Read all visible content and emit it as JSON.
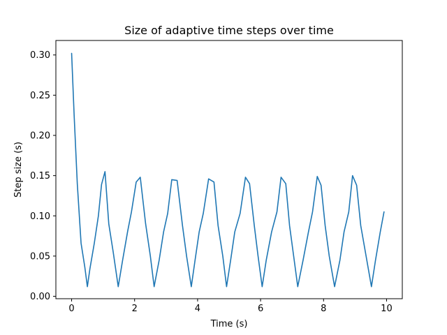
{
  "chart_data": {
    "type": "line",
    "title": "Size of adaptive time steps over time",
    "xlabel": "Time (s)",
    "ylabel": "Step size (s)",
    "xlim": [
      -0.5,
      10.5
    ],
    "ylim": [
      -0.003,
      0.318
    ],
    "x_ticks": [
      0,
      2,
      4,
      6,
      8,
      10
    ],
    "x_tick_labels": [
      "0",
      "2",
      "4",
      "6",
      "8",
      "10"
    ],
    "y_ticks": [
      0.0,
      0.05,
      0.1,
      0.15,
      0.2,
      0.25,
      0.3
    ],
    "y_tick_labels": [
      "0.00",
      "0.05",
      "0.10",
      "0.15",
      "0.20",
      "0.25",
      "0.30"
    ],
    "grid": false,
    "legend": "none",
    "line_color": "#1f77b4",
    "series": [
      {
        "x": [
          0.0,
          0.08,
          0.18,
          0.3,
          0.42,
          0.5,
          0.58,
          0.72,
          0.85,
          0.95,
          1.06,
          1.18,
          1.32,
          1.48,
          1.62,
          1.78,
          1.9,
          2.05,
          2.18,
          2.35,
          2.5,
          2.62,
          2.78,
          2.92,
          3.05,
          3.18,
          3.35,
          3.52,
          3.65,
          3.8,
          3.92,
          4.05,
          4.18,
          4.35,
          4.52,
          4.65,
          4.8,
          4.92,
          5.05,
          5.18,
          5.35,
          5.52,
          5.65,
          5.8,
          5.92,
          6.05,
          6.18,
          6.35,
          6.52,
          6.65,
          6.8,
          6.92,
          7.05,
          7.18,
          7.35,
          7.52,
          7.65,
          7.8,
          7.92,
          8.05,
          8.18,
          8.35,
          8.52,
          8.65,
          8.8,
          8.92,
          9.05,
          9.18,
          9.35,
          9.52,
          9.65,
          9.8,
          9.92
        ],
        "y": [
          0.302,
          0.225,
          0.14,
          0.066,
          0.036,
          0.012,
          0.034,
          0.066,
          0.1,
          0.139,
          0.155,
          0.09,
          0.055,
          0.012,
          0.045,
          0.081,
          0.105,
          0.142,
          0.148,
          0.09,
          0.05,
          0.012,
          0.045,
          0.08,
          0.103,
          0.145,
          0.144,
          0.088,
          0.05,
          0.012,
          0.045,
          0.08,
          0.103,
          0.146,
          0.142,
          0.088,
          0.05,
          0.012,
          0.045,
          0.08,
          0.103,
          0.148,
          0.14,
          0.088,
          0.05,
          0.012,
          0.045,
          0.08,
          0.105,
          0.148,
          0.14,
          0.088,
          0.05,
          0.012,
          0.045,
          0.08,
          0.105,
          0.149,
          0.138,
          0.088,
          0.05,
          0.012,
          0.045,
          0.08,
          0.105,
          0.15,
          0.138,
          0.088,
          0.05,
          0.012,
          0.045,
          0.08,
          0.105
        ]
      }
    ]
  }
}
